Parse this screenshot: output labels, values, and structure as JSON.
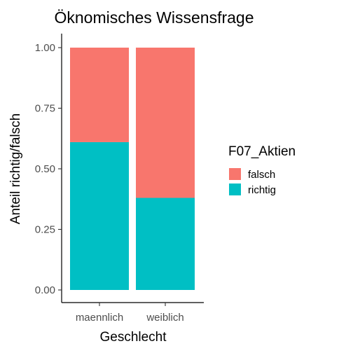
{
  "chart_data": {
    "type": "bar",
    "stacked": true,
    "title": "Öknomisches Wissensfrage",
    "xlabel": "Geschlecht",
    "ylabel": "Anteil richtig/falsch",
    "categories": [
      "maennlich",
      "weiblich"
    ],
    "series": [
      {
        "name": "richtig",
        "values": [
          0.61,
          0.38
        ],
        "color": "#00BFC4"
      },
      {
        "name": "falsch",
        "values": [
          0.39,
          0.62
        ],
        "color": "#F8766D"
      }
    ],
    "ylim": [
      0,
      1
    ],
    "yticks": [
      0,
      0.25,
      0.5,
      0.75,
      1
    ],
    "ytick_labels": [
      "0.00",
      "0.25",
      "0.50",
      "0.75",
      "1.00"
    ],
    "legend": {
      "title": "F07_Aktien",
      "placement": "right",
      "entries": [
        {
          "label": "falsch",
          "color": "#F8766D"
        },
        {
          "label": "richtig",
          "color": "#00BFC4"
        }
      ]
    },
    "grid": false
  }
}
